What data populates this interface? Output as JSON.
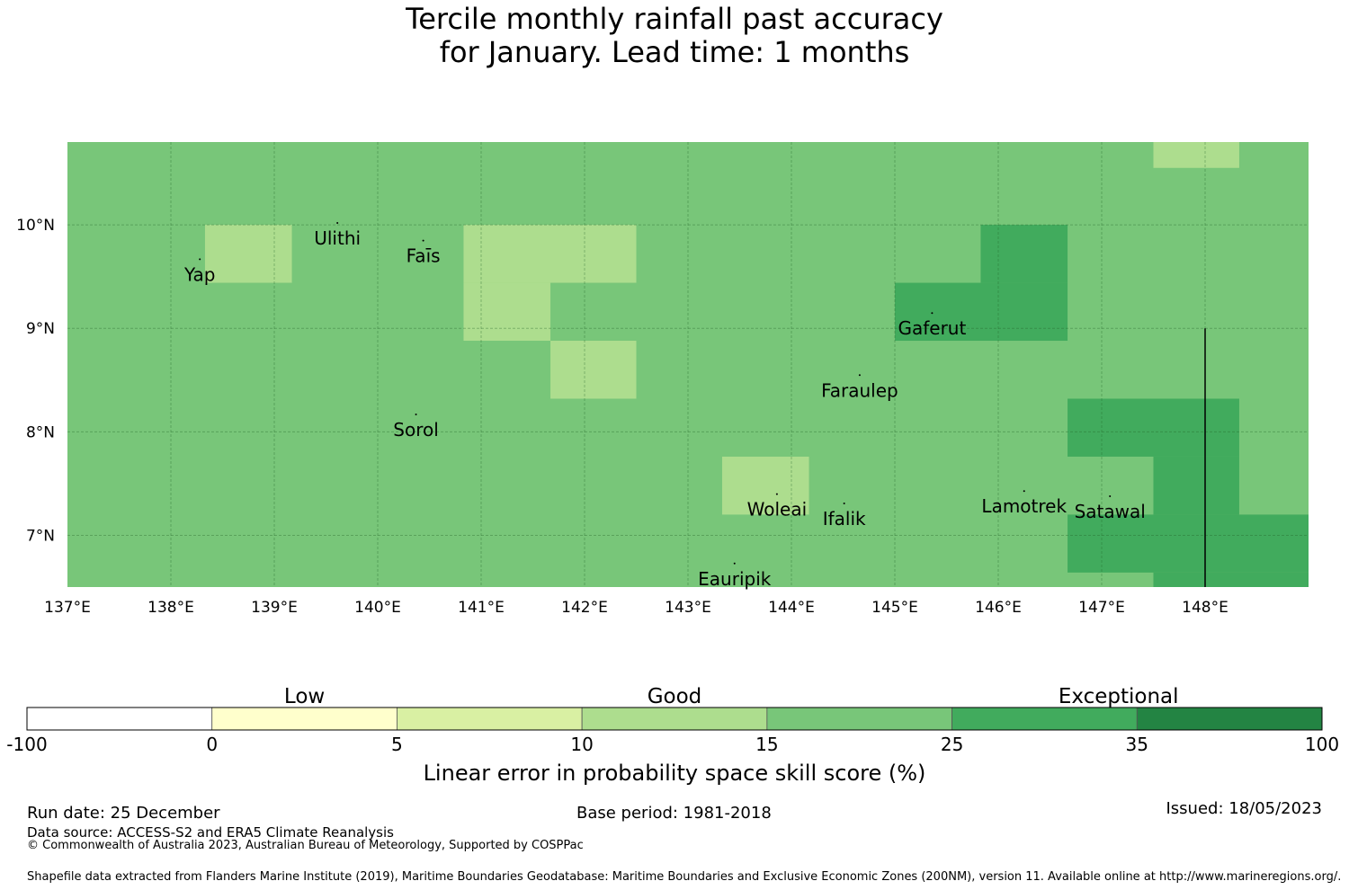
{
  "title": {
    "line1": "Tercile monthly rainfall past accuracy",
    "line2": "for January. Lead time: 1 months"
  },
  "map": {
    "lon_range": [
      137.0,
      149.0
    ],
    "lat_range": [
      6.5,
      10.8
    ],
    "lon_ticks": [
      {
        "value": 137,
        "label": "137°E"
      },
      {
        "value": 138,
        "label": "138°E"
      },
      {
        "value": 139,
        "label": "139°E"
      },
      {
        "value": 140,
        "label": "140°E"
      },
      {
        "value": 141,
        "label": "141°E"
      },
      {
        "value": 142,
        "label": "142°E"
      },
      {
        "value": 143,
        "label": "143°E"
      },
      {
        "value": 144,
        "label": "144°E"
      },
      {
        "value": 145,
        "label": "145°E"
      },
      {
        "value": 146,
        "label": "146°E"
      },
      {
        "value": 147,
        "label": "147°E"
      },
      {
        "value": 148,
        "label": "148°E"
      }
    ],
    "lat_ticks": [
      {
        "value": 10,
        "label": "10°N"
      },
      {
        "value": 9,
        "label": "9°N"
      },
      {
        "value": 8,
        "label": "8°N"
      },
      {
        "value": 7,
        "label": "7°N"
      }
    ],
    "background_category": "15-25",
    "cells": [
      {
        "lon0": 138.33,
        "lon1": 139.17,
        "lat0": 9.44,
        "lat1": 10.0,
        "category": "10-15"
      },
      {
        "lon0": 140.83,
        "lon1": 142.5,
        "lat0": 9.44,
        "lat1": 10.0,
        "category": "10-15"
      },
      {
        "lon0": 140.83,
        "lon1": 141.67,
        "lat0": 8.88,
        "lat1": 9.44,
        "category": "10-15"
      },
      {
        "lon0": 141.67,
        "lon1": 142.5,
        "lat0": 8.32,
        "lat1": 8.88,
        "category": "10-15"
      },
      {
        "lon0": 143.33,
        "lon1": 144.17,
        "lat0": 7.2,
        "lat1": 7.76,
        "category": "10-15"
      },
      {
        "lon0": 147.5,
        "lon1": 148.33,
        "lat0": 10.55,
        "lat1": 10.8,
        "category": "10-15"
      },
      {
        "lon0": 145.83,
        "lon1": 146.67,
        "lat0": 9.44,
        "lat1": 10.0,
        "category": "25-35"
      },
      {
        "lon0": 145.0,
        "lon1": 146.67,
        "lat0": 8.88,
        "lat1": 9.44,
        "category": "25-35"
      },
      {
        "lon0": 146.67,
        "lon1": 148.33,
        "lat0": 7.76,
        "lat1": 8.32,
        "category": "25-35"
      },
      {
        "lon0": 147.5,
        "lon1": 148.33,
        "lat0": 7.2,
        "lat1": 7.76,
        "category": "25-35"
      },
      {
        "lon0": 146.67,
        "lon1": 149.0,
        "lat0": 6.64,
        "lat1": 7.2,
        "category": "25-35"
      },
      {
        "lon0": 147.5,
        "lon1": 149.0,
        "lat0": 6.5,
        "lat1": 6.64,
        "category": "25-35"
      }
    ],
    "boundary_line": {
      "lon": 148.0,
      "lat0": 6.5,
      "lat1": 9.0
    },
    "places": [
      {
        "name": "Yap",
        "lon": 138.28,
        "lat": 9.52
      },
      {
        "name": "Ulithi",
        "lon": 139.61,
        "lat": 9.87
      },
      {
        "name": "Faīs",
        "lon": 140.44,
        "lat": 9.7
      },
      {
        "name": "Gaferut",
        "lon": 145.36,
        "lat": 9.0
      },
      {
        "name": "Faraulep",
        "lon": 144.66,
        "lat": 8.4
      },
      {
        "name": "Sorol",
        "lon": 140.37,
        "lat": 8.02
      },
      {
        "name": "Lamotrek",
        "lon": 146.25,
        "lat": 7.28
      },
      {
        "name": "Satawal",
        "lon": 147.08,
        "lat": 7.23
      },
      {
        "name": "Woleai",
        "lon": 143.86,
        "lat": 7.25
      },
      {
        "name": "Ifalik",
        "lon": 144.51,
        "lat": 7.16
      },
      {
        "name": "Eauripik",
        "lon": 143.45,
        "lat": 6.58
      }
    ]
  },
  "colorbar": {
    "title": "Linear error in probability space skill score (%)",
    "tick_labels": [
      "-100",
      "0",
      "5",
      "10",
      "15",
      "25",
      "35",
      "100"
    ],
    "bins": [
      {
        "id": "-100-0",
        "color": "#ffffff"
      },
      {
        "id": "0-5",
        "color": "#ffffcc"
      },
      {
        "id": "5-10",
        "color": "#d9f0a3"
      },
      {
        "id": "10-15",
        "color": "#addd8e"
      },
      {
        "id": "15-25",
        "color": "#78c679"
      },
      {
        "id": "25-35",
        "color": "#41ab5d"
      },
      {
        "id": "35-100",
        "color": "#238443"
      }
    ],
    "categories": [
      "Low",
      "Good",
      "Exceptional"
    ]
  },
  "footer": {
    "run_date": "Run date: 25 December",
    "base_period": "Base period: 1981-2018",
    "issued": "Issued: 18/05/2023",
    "data_source": "Data source: ACCESS-S2 and ERA5 Climate Reanalysis",
    "copyright": "© Commonwealth of Australia 2023, Australian Bureau of Meteorology, Supported by COSPPac",
    "shapefile": "Shapefile data extracted from Flanders Marine Institute (2019), Maritime Boundaries Geodatabase: Maritime Boundaries and Exclusive Economic Zones (200NM), version 11. Available online at http://www.marineregions.org/."
  }
}
